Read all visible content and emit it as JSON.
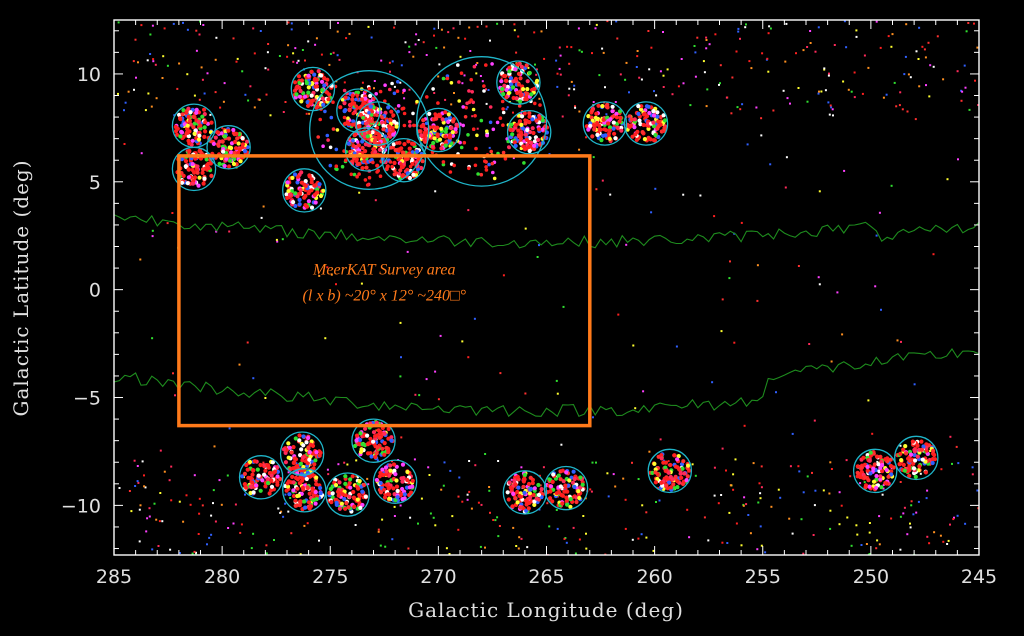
{
  "chart_data": {
    "type": "scatter",
    "xlabel": "Galactic Longitude (deg)",
    "ylabel": "Galactic Latitude (deg)",
    "xlim": [
      285,
      245
    ],
    "ylim": [
      -12.3,
      12.5
    ],
    "x_ticks": [
      "285",
      "280",
      "275",
      "270",
      "265",
      "260",
      "255",
      "250",
      "245"
    ],
    "x_tick_values": [
      285,
      280,
      275,
      270,
      265,
      260,
      255,
      250,
      245
    ],
    "y_ticks": [
      "10",
      "5",
      "0",
      "−5",
      "−10"
    ],
    "y_tick_values": [
      10,
      5,
      0,
      -5,
      -10
    ],
    "grid": false,
    "background_color": "#000000",
    "colors": {
      "frame": "#ffffff",
      "circles": "#1fb5c9",
      "survey_box": "#ff7a1a",
      "contour": "#1e8c1e",
      "point_palette": [
        "#ff2020",
        "#ff3030",
        "#ff2a5a",
        "#ff40ff",
        "#ffff30",
        "#30e030",
        "#ffffff",
        "#3060ff",
        "#ff9020"
      ]
    },
    "survey_area": {
      "l_range": [
        263,
        282
      ],
      "b_range": [
        -6.3,
        6.2
      ],
      "label_line1": "MeerKAT  Survey area",
      "label_line2": "(l x b) ~20° x 12° ~240□°"
    },
    "clusters": [
      {
        "l": 281.3,
        "b": 7.6,
        "r": 1.0
      },
      {
        "l": 281.3,
        "b": 5.6,
        "r": 1.0
      },
      {
        "l": 279.7,
        "b": 6.6,
        "r": 1.0
      },
      {
        "l": 276.2,
        "b": 4.6,
        "r": 1.0
      },
      {
        "l": 275.8,
        "b": 9.3,
        "r": 1.0
      },
      {
        "l": 273.7,
        "b": 8.3,
        "r": 1.0
      },
      {
        "l": 272.8,
        "b": 7.7,
        "r": 1.0
      },
      {
        "l": 273.3,
        "b": 6.5,
        "r": 1.0
      },
      {
        "l": 271.6,
        "b": 6.0,
        "r": 1.0
      },
      {
        "l": 273.2,
        "b": 7.4,
        "r": 2.75
      },
      {
        "l": 268.0,
        "b": 7.8,
        "r": 3.0
      },
      {
        "l": 270.0,
        "b": 7.4,
        "r": 1.0
      },
      {
        "l": 266.3,
        "b": 9.6,
        "r": 1.0
      },
      {
        "l": 265.8,
        "b": 7.3,
        "r": 1.0
      },
      {
        "l": 262.3,
        "b": 7.7,
        "r": 1.0
      },
      {
        "l": 260.4,
        "b": 7.7,
        "r": 1.0
      },
      {
        "l": 278.2,
        "b": -8.7,
        "r": 1.0
      },
      {
        "l": 276.3,
        "b": -7.6,
        "r": 1.0
      },
      {
        "l": 276.2,
        "b": -9.3,
        "r": 1.0
      },
      {
        "l": 274.2,
        "b": -9.5,
        "r": 1.0
      },
      {
        "l": 273.0,
        "b": -7.0,
        "r": 1.0
      },
      {
        "l": 272.0,
        "b": -8.9,
        "r": 1.0
      },
      {
        "l": 266.0,
        "b": -9.4,
        "r": 1.0
      },
      {
        "l": 264.1,
        "b": -9.2,
        "r": 1.0
      },
      {
        "l": 259.3,
        "b": -8.4,
        "r": 1.0
      },
      {
        "l": 249.8,
        "b": -8.4,
        "r": 1.0
      },
      {
        "l": 247.9,
        "b": -7.8,
        "r": 1.0
      }
    ]
  }
}
